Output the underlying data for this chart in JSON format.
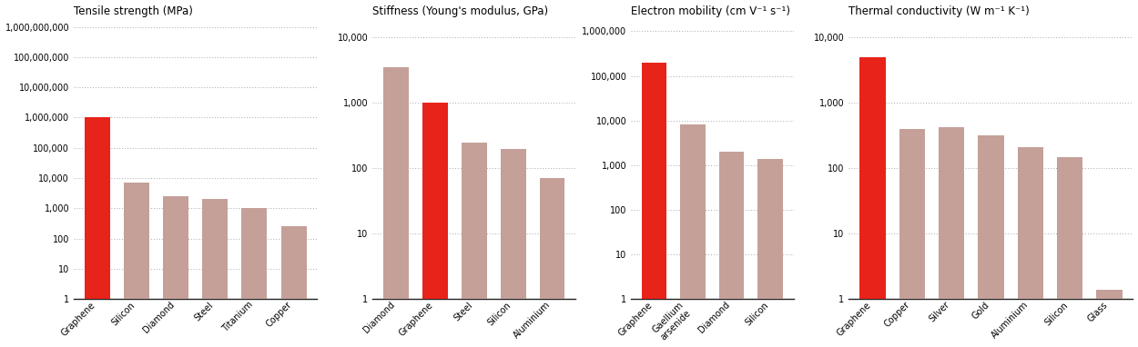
{
  "charts": [
    {
      "title": "Tensile strength (MPa)",
      "ylim": [
        1,
        2000000000.0
      ],
      "yticks": [
        1,
        10,
        100,
        1000,
        10000,
        100000,
        1000000,
        10000000,
        100000000,
        1000000000
      ],
      "ytick_labels": [
        "1",
        "10",
        "100",
        "1,000",
        "10,000",
        "100,000",
        "1,000,000",
        "10,000,000",
        "100,000,000",
        "1,000,000,000"
      ],
      "categories": [
        "Graphene",
        "Silicon",
        "Diamond",
        "Steel",
        "Titanium",
        "Copper"
      ],
      "values": [
        1000000,
        7000,
        2500,
        2000,
        1000,
        250
      ],
      "colors": [
        "#e8231a",
        "#c4a098",
        "#c4a098",
        "#c4a098",
        "#c4a098",
        "#c4a098"
      ]
    },
    {
      "title": "Stiffness (Young's modulus, GPa)",
      "ylim": [
        1,
        20000
      ],
      "yticks": [
        1,
        10,
        100,
        1000,
        10000
      ],
      "ytick_labels": [
        "1",
        "10",
        "100",
        "1,000",
        "10,000"
      ],
      "categories": [
        "Diamond",
        "Graphene",
        "Steel",
        "Silicon",
        "Aluminium"
      ],
      "values": [
        3500,
        1000,
        250,
        200,
        70
      ],
      "colors": [
        "#c4a098",
        "#e8231a",
        "#c4a098",
        "#c4a098",
        "#c4a098"
      ]
    },
    {
      "title": "Electron mobility (cm V⁻¹ s⁻¹)",
      "ylim": [
        1,
        2000000
      ],
      "yticks": [
        1,
        10,
        100,
        1000,
        10000,
        100000,
        1000000
      ],
      "ytick_labels": [
        "1",
        "10",
        "100",
        "1,000",
        "10,000",
        "100,000",
        "1,000,000"
      ],
      "categories": [
        "Graphene",
        "Gaellium\narsenide",
        "Diamond",
        "Silicon"
      ],
      "values": [
        200000,
        8000,
        2000,
        1400
      ],
      "colors": [
        "#e8231a",
        "#c4a098",
        "#c4a098",
        "#c4a098"
      ]
    },
    {
      "title": "Thermal conductivity (W m⁻¹ K⁻¹)",
      "ylim": [
        1,
        20000
      ],
      "yticks": [
        1,
        10,
        100,
        1000,
        10000
      ],
      "ytick_labels": [
        "1",
        "10",
        "100",
        "1,000",
        "10,000"
      ],
      "categories": [
        "Graphene",
        "Copper",
        "Silver",
        "Gold",
        "Aluminium",
        "Silicon",
        "Glass"
      ],
      "values": [
        5000,
        400,
        430,
        320,
        210,
        150,
        1.4
      ],
      "colors": [
        "#e8231a",
        "#c4a098",
        "#c4a098",
        "#c4a098",
        "#c4a098",
        "#c4a098",
        "#c4a098"
      ]
    }
  ],
  "background_color": "#ffffff",
  "grid_color": "#aaaaaa",
  "bar_width": 0.65,
  "title_fontsize": 8.5,
  "tick_fontsize": 7,
  "label_fontsize": 7
}
